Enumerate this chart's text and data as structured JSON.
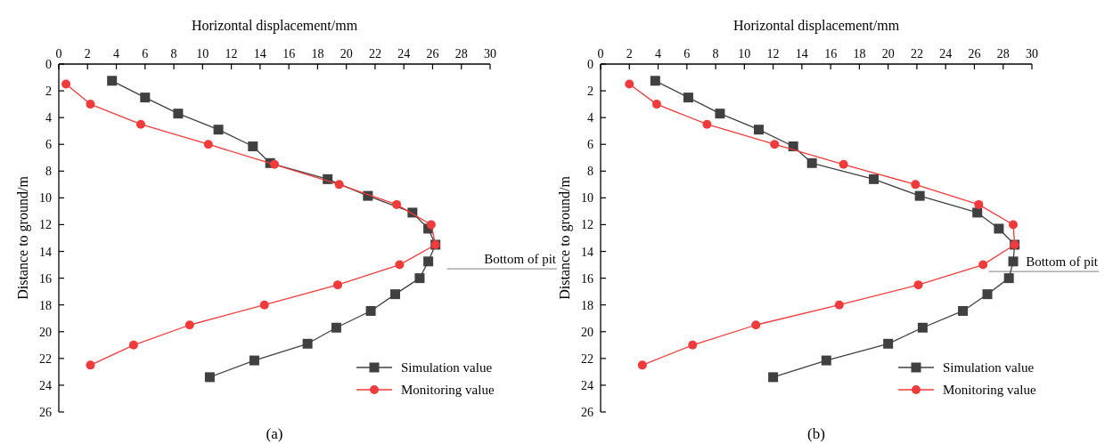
{
  "chart_data": [
    {
      "type": "line",
      "xlabel": "Horizontal displacement/mm",
      "ylabel": "Distance to ground/m",
      "xlim": [
        0,
        30
      ],
      "xticks": [
        0,
        2,
        4,
        6,
        8,
        10,
        12,
        14,
        16,
        18,
        20,
        22,
        24,
        26,
        28,
        30
      ],
      "ylim": [
        26,
        0
      ],
      "yticks": [
        0,
        2,
        4,
        6,
        8,
        10,
        12,
        14,
        16,
        18,
        20,
        22,
        24,
        26
      ],
      "grid": false,
      "legend": "bottom right",
      "line_style": "solid",
      "series": [
        {
          "name": "Simulation value",
          "color": "#404040",
          "marker": "square",
          "x": [
            3.7,
            6.0,
            8.3,
            11.1,
            13.5,
            14.7,
            18.7,
            21.5,
            24.6,
            25.7,
            26.2,
            25.7,
            25.1,
            23.4,
            21.7,
            19.3,
            17.3,
            13.6,
            10.5
          ],
          "values": [
            1.25,
            2.5,
            3.7,
            4.9,
            6.15,
            7.4,
            8.6,
            9.85,
            11.1,
            12.3,
            13.5,
            14.75,
            16.0,
            17.2,
            18.45,
            19.7,
            20.9,
            22.15,
            23.4
          ]
        },
        {
          "name": "Monitoring value",
          "color": "#ef3b3b",
          "marker": "circle",
          "x": [
            0.5,
            2.2,
            5.7,
            10.4,
            15.0,
            19.5,
            23.5,
            25.9,
            26.2,
            23.7,
            19.4,
            14.3,
            9.1,
            5.2,
            2.2
          ],
          "values": [
            1.5,
            3.0,
            4.5,
            6.0,
            7.5,
            9.0,
            10.5,
            12.0,
            13.5,
            15.0,
            16.5,
            18.0,
            19.5,
            21.0,
            22.5
          ]
        }
      ],
      "ref_lines": [
        {
          "axis": "y",
          "value": 15.3,
          "label": "Bottom of pit",
          "color": "#808080"
        }
      ],
      "annotations": [
        "(a)"
      ]
    },
    {
      "type": "line",
      "xlabel": "Horizontal displacement/mm",
      "ylabel": "Distance to ground/m",
      "xlim": [
        0,
        30
      ],
      "xticks": [
        0,
        2,
        4,
        6,
        8,
        10,
        12,
        14,
        16,
        18,
        20,
        22,
        24,
        26,
        28,
        30
      ],
      "ylim": [
        26,
        0
      ],
      "yticks": [
        0,
        2,
        4,
        6,
        8,
        10,
        12,
        14,
        16,
        18,
        20,
        22,
        24,
        26
      ],
      "grid": false,
      "legend": "bottom right",
      "line_style": "solid",
      "series": [
        {
          "name": "Simulation value",
          "color": "#404040",
          "marker": "square",
          "x": [
            3.8,
            6.1,
            8.3,
            11.0,
            13.4,
            14.7,
            19.0,
            22.2,
            26.2,
            27.7,
            28.8,
            28.7,
            28.4,
            26.9,
            25.2,
            22.4,
            20.0,
            15.7,
            12.0
          ],
          "values": [
            1.25,
            2.5,
            3.7,
            4.9,
            6.15,
            7.4,
            8.6,
            9.85,
            11.1,
            12.3,
            13.5,
            14.75,
            16.0,
            17.2,
            18.45,
            19.7,
            20.9,
            22.15,
            23.4
          ]
        },
        {
          "name": "Monitoring value",
          "color": "#ef3b3b",
          "marker": "circle",
          "x": [
            2.0,
            3.9,
            7.4,
            12.1,
            16.9,
            21.9,
            26.3,
            28.7,
            28.8,
            26.6,
            22.1,
            16.6,
            10.8,
            6.4,
            2.9
          ],
          "values": [
            1.5,
            3.0,
            4.5,
            6.0,
            7.5,
            9.0,
            10.5,
            12.0,
            13.5,
            15.0,
            16.5,
            18.0,
            19.5,
            21.0,
            22.5
          ]
        }
      ],
      "ref_lines": [
        {
          "axis": "y",
          "value": 15.5,
          "label": "Bottom of pit",
          "color": "#808080"
        }
      ],
      "annotations": [
        "(b)"
      ]
    }
  ]
}
